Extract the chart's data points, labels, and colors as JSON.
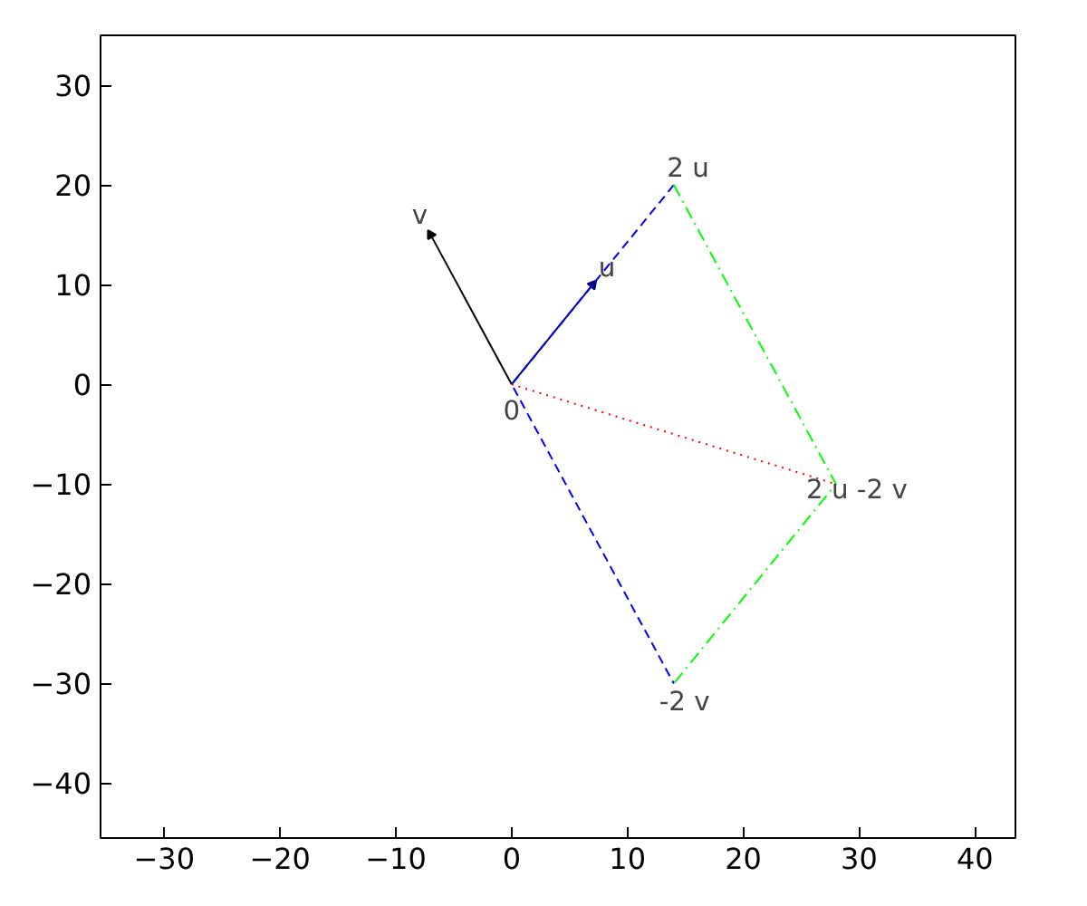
{
  "chart_data": {
    "type": "line",
    "xlim": [
      -35.5,
      43.5
    ],
    "ylim": [
      -45.5,
      35
    ],
    "xticks": [
      -30,
      -20,
      -10,
      0,
      10,
      20,
      30,
      40
    ],
    "yticks": [
      -40,
      -30,
      -20,
      -10,
      0,
      10,
      20,
      30
    ],
    "grid": false,
    "marker": "none",
    "series": [
      {
        "x": [
          0,
          7
        ],
        "values": [
          0,
          10
        ],
        "color": "#000080",
        "line_style": "solid",
        "marker": "triangle"
      },
      {
        "x": [
          0,
          -7
        ],
        "values": [
          0,
          15
        ],
        "color": "#000000",
        "line_style": "solid",
        "marker": "triangle"
      },
      {
        "x": [
          14,
          0,
          14
        ],
        "values": [
          20,
          0,
          -30
        ],
        "color": "#0000ff",
        "line_style": "dashed"
      },
      {
        "x": [
          14,
          28,
          14
        ],
        "values": [
          20,
          -10,
          -30
        ],
        "color": "#00ff00",
        "line_style": "dashdot"
      },
      {
        "x": [
          0,
          28
        ],
        "values": [
          0,
          -10
        ],
        "color": "#ff0000",
        "line_style": "dotted"
      }
    ],
    "annotations": [
      {
        "text": "v",
        "x": -7,
        "y": 15
      },
      {
        "text": "u",
        "x": 7,
        "y": 10
      },
      {
        "text": "2 u",
        "x": 14,
        "y": 20
      },
      {
        "text": "0",
        "x": 0,
        "y": 0
      },
      {
        "text": "2 u -2 v",
        "x": 28,
        "y": -10
      },
      {
        "text": "-2 v",
        "x": 14,
        "y": -30
      }
    ]
  }
}
